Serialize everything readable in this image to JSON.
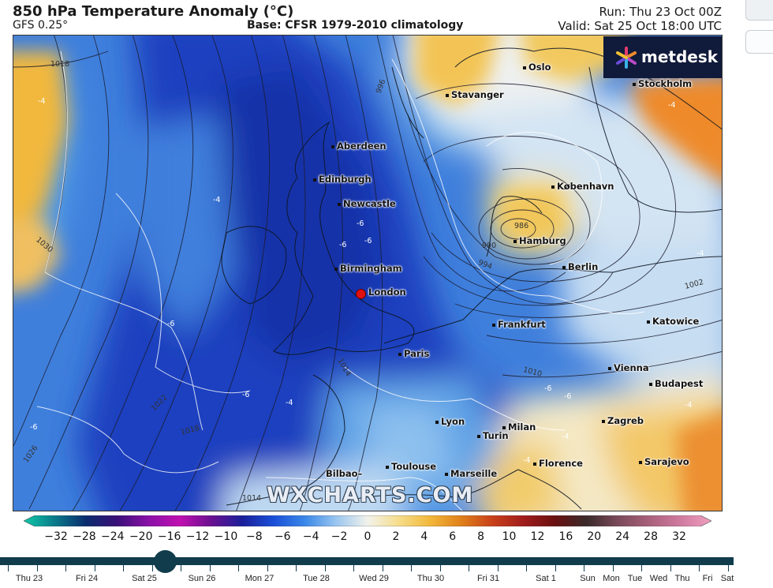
{
  "header": {
    "title": "850 hPa Temperature Anomaly (°C)",
    "model": "GFS 0.25°",
    "base": "Base: CFSR 1979-2010 climatology",
    "run": "Run: Thu 23 Oct 00Z",
    "valid": "Valid: Sat 25 Oct 18:00 UTC"
  },
  "logo": {
    "text": "metdesk",
    "icon": "metdesk-star-icon"
  },
  "watermark": "WXCHARTS.COM",
  "cities": [
    "Oslo",
    "Stavanger",
    "Stockholm",
    "Aberdeen",
    "Edinburgh",
    "Newcastle",
    "København",
    "Hamburg",
    "Berlin",
    "Birmingham",
    "London",
    "Frankfurt",
    "Katowice",
    "Paris",
    "Vienna",
    "Budapest",
    "Zagreb",
    "Lyon",
    "Milan",
    "Turin",
    "Bilbao",
    "Toulouse",
    "Marseille",
    "Florence",
    "Sarajevo"
  ],
  "isobar_labels": [
    "1018",
    "996",
    "1030",
    "986",
    "990",
    "994",
    "1002",
    "1010",
    "1014",
    "1022",
    "1018",
    "1026",
    "1014"
  ],
  "anomaly_labels": [
    "-4",
    "-4",
    "-6",
    "-6",
    "-6",
    "-6",
    "-6",
    "-4",
    "-4",
    "-4",
    "-6",
    "-6",
    "-6",
    "-4",
    "-4",
    "-4"
  ],
  "colorbar": {
    "ticks": [
      "−32",
      "−28",
      "−24",
      "−20",
      "−16",
      "−12",
      "−10",
      "−8",
      "−6",
      "−4",
      "−2",
      "0",
      "2",
      "4",
      "6",
      "8",
      "10",
      "12",
      "16",
      "20",
      "24",
      "28",
      "32"
    ],
    "colors": [
      "#10c8a8",
      "#0a7a8a",
      "#0a2b6e",
      "#3a0f78",
      "#8a10a8",
      "#c010b0",
      "#6a1090",
      "#1a1f9a",
      "#1a4fd8",
      "#3a88e8",
      "#9ac6f0",
      "#f2f2ec",
      "#f6dd8a",
      "#f2b83a",
      "#e0801a",
      "#c8401a",
      "#a01c1c",
      "#6a1010",
      "#3a2a2a",
      "#7a4a5a",
      "#a8607a",
      "#d07aa0",
      "#f0a0c0"
    ]
  },
  "timeline": {
    "days": [
      "Thu 23",
      "Fri 24",
      "Sat 25",
      "Sun 26",
      "Mon 27",
      "Tue 28",
      "Wed 29",
      "Thu 30",
      "Fri 31",
      "Sat 1",
      "Sun",
      "Mon",
      "Tue",
      "Wed",
      "Thu",
      "Fri",
      "Sat"
    ],
    "current_position": 0.225
  }
}
